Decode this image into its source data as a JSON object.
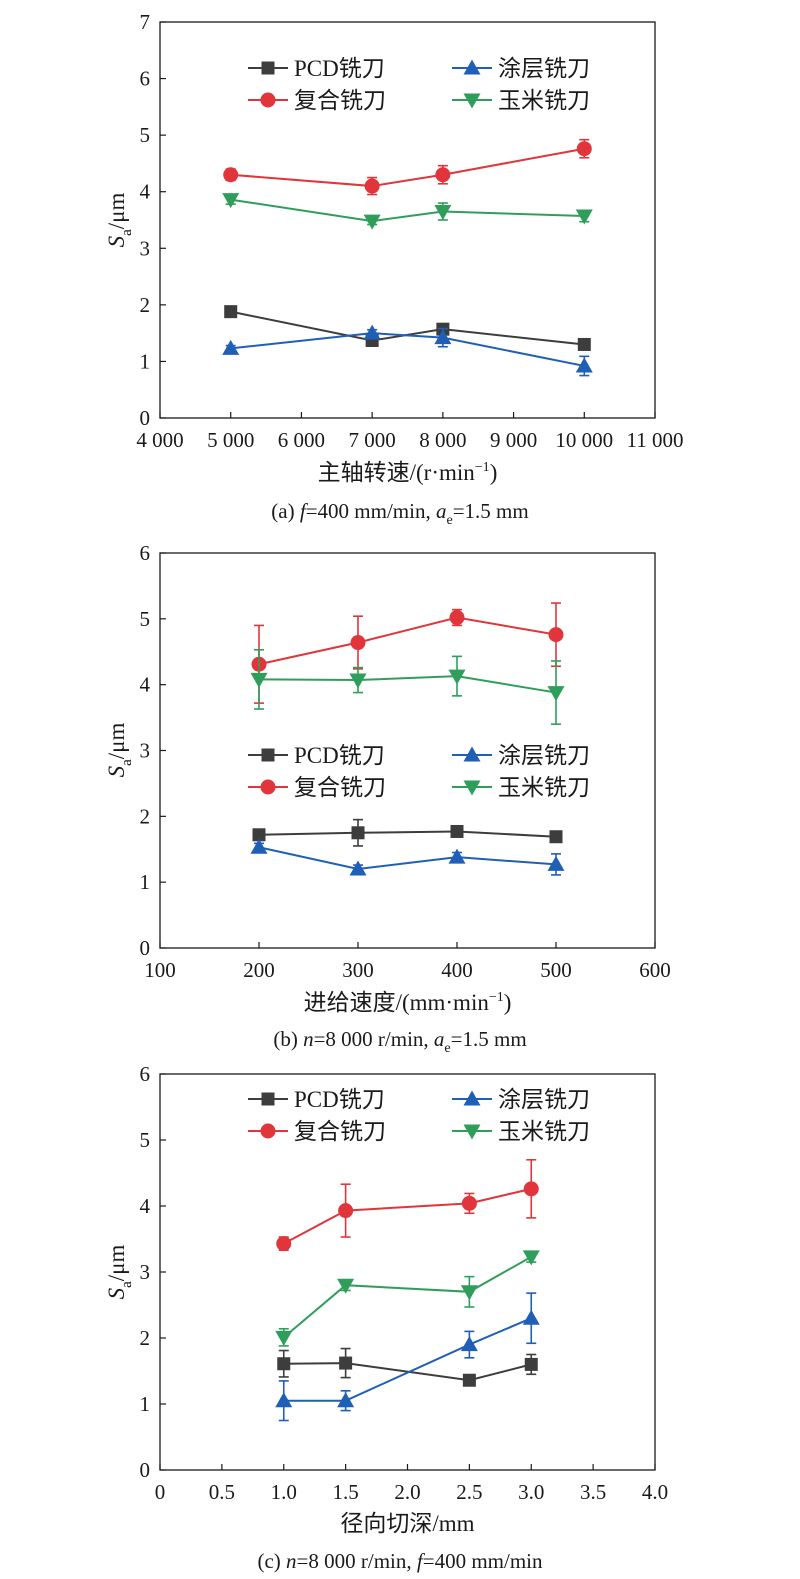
{
  "chart_data": [
    {
      "type": "line",
      "panel": "a",
      "xlabel": "主轴转速/(r·min",
      "xlabel_sup": "−1",
      "xlabel_close": ")",
      "ylabel": "S",
      "ylabel_sub": "a",
      "ylabel_unit": "/μm",
      "caption": "(a) f=400 mm/min, ae=1.5 mm",
      "caption_parts": {
        "pre": "(a) ",
        "var1": "f",
        "mid": "=400 mm/min, ",
        "var2": "a",
        "var2_sub": "e",
        "post": "=1.5 mm"
      },
      "xlim": [
        4000,
        11000
      ],
      "ylim": [
        0,
        7
      ],
      "xticks": [
        4000,
        5000,
        6000,
        7000,
        8000,
        9000,
        10000,
        11000
      ],
      "xtick_labels": [
        "4 000",
        "5 000",
        "6 000",
        "7 000",
        "8 000",
        "9 000",
        "10 000",
        "11 000"
      ],
      "yticks": [
        0,
        1,
        2,
        3,
        4,
        5,
        6,
        7
      ],
      "ytick_labels": [
        "0",
        "1",
        "2",
        "3",
        "4",
        "5",
        "6",
        "7"
      ],
      "legend_position": "top",
      "grid": false,
      "x": [
        5000,
        7000,
        8000,
        10000
      ],
      "series": [
        {
          "name": "PCD铣刀",
          "marker": "square",
          "color": "#3d3d3d",
          "values": [
            1.88,
            1.37,
            1.57,
            1.3
          ],
          "errors": [
            0.05,
            0.07,
            0.06,
            0.05
          ]
        },
        {
          "name": "涂层铣刀",
          "marker": "triangle-up",
          "color": "#1f5fb5",
          "values": [
            1.23,
            1.5,
            1.42,
            0.92
          ],
          "errors": [
            0.05,
            0.06,
            0.16,
            0.17
          ]
        },
        {
          "name": "复合铣刀",
          "marker": "circle",
          "color": "#e0353a",
          "values": [
            4.3,
            4.1,
            4.3,
            4.76
          ],
          "errors": [
            0.1,
            0.15,
            0.16,
            0.16
          ]
        },
        {
          "name": "玉米铣刀",
          "marker": "triangle-down",
          "color": "#2e9e5a",
          "values": [
            3.86,
            3.48,
            3.65,
            3.57
          ],
          "errors": [
            0.08,
            0.06,
            0.15,
            0.1
          ]
        }
      ]
    },
    {
      "type": "line",
      "panel": "b",
      "xlabel": "进给速度/(mm·min",
      "xlabel_sup": "−1",
      "xlabel_close": ")",
      "ylabel": "S",
      "ylabel_sub": "a",
      "ylabel_unit": "/μm",
      "caption": "(b) n=8 000 r/min, ae=1.5 mm",
      "caption_parts": {
        "pre": "(b) ",
        "var1": "n",
        "mid": "=8 000 r/min, ",
        "var2": "a",
        "var2_sub": "e",
        "post": "=1.5 mm"
      },
      "xlim": [
        100,
        600
      ],
      "ylim": [
        0,
        6
      ],
      "xticks": [
        100,
        200,
        300,
        400,
        500,
        600
      ],
      "xtick_labels": [
        "100",
        "200",
        "300",
        "400",
        "500",
        "600"
      ],
      "yticks": [
        0,
        1,
        2,
        3,
        4,
        5,
        6
      ],
      "ytick_labels": [
        "0",
        "1",
        "2",
        "3",
        "4",
        "5",
        "6"
      ],
      "legend_position": "middle",
      "grid": false,
      "x": [
        200,
        300,
        400,
        500
      ],
      "series": [
        {
          "name": "PCD铣刀",
          "marker": "square",
          "color": "#3d3d3d",
          "values": [
            1.72,
            1.75,
            1.77,
            1.69
          ],
          "errors": [
            0.05,
            0.2,
            0.06,
            0.05
          ]
        },
        {
          "name": "涂层铣刀",
          "marker": "triangle-up",
          "color": "#1f5fb5",
          "values": [
            1.53,
            1.2,
            1.38,
            1.27
          ],
          "errors": [
            0.06,
            0.06,
            0.07,
            0.16
          ]
        },
        {
          "name": "复合铣刀",
          "marker": "circle",
          "color": "#e0353a",
          "values": [
            4.31,
            4.64,
            5.02,
            4.76
          ],
          "errors": [
            0.59,
            0.4,
            0.12,
            0.48
          ]
        },
        {
          "name": "玉米铣刀",
          "marker": "triangle-down",
          "color": "#2e9e5a",
          "values": [
            4.08,
            4.07,
            4.13,
            3.88
          ],
          "errors": [
            0.45,
            0.19,
            0.3,
            0.48
          ]
        }
      ]
    },
    {
      "type": "line",
      "panel": "c",
      "xlabel": "径向切深/mm",
      "xlabel_sup": "",
      "xlabel_close": "",
      "ylabel": "S",
      "ylabel_sub": "a",
      "ylabel_unit": "/μm",
      "caption": "(c) n=8 000 r/min, f=400 mm/min",
      "caption_parts": {
        "pre": "(c) ",
        "var1": "n",
        "mid": "=8 000 r/min, ",
        "var2": "f",
        "var2_sub": "",
        "post": "=400 mm/min"
      },
      "xlim": [
        0,
        4
      ],
      "ylim": [
        0,
        6
      ],
      "xticks": [
        0,
        0.5,
        1,
        1.5,
        2,
        2.5,
        3,
        3.5,
        4
      ],
      "xtick_labels": [
        "0",
        "0.5",
        "1.0",
        "1.5",
        "2.0",
        "2.5",
        "3.0",
        "3.5",
        "4.0"
      ],
      "yticks": [
        0,
        1,
        2,
        3,
        4,
        5,
        6
      ],
      "ytick_labels": [
        "0",
        "1",
        "2",
        "3",
        "4",
        "5",
        "6"
      ],
      "legend_position": "top",
      "grid": false,
      "x": [
        1.0,
        1.5,
        2.5,
        3.0
      ],
      "series": [
        {
          "name": "PCD铣刀",
          "marker": "square",
          "color": "#3d3d3d",
          "values": [
            1.61,
            1.62,
            1.36,
            1.6
          ],
          "errors": [
            0.2,
            0.22,
            0.05,
            0.15
          ]
        },
        {
          "name": "涂层铣刀",
          "marker": "triangle-up",
          "color": "#1f5fb5",
          "values": [
            1.05,
            1.05,
            1.9,
            2.3
          ],
          "errors": [
            0.3,
            0.15,
            0.2,
            0.38
          ]
        },
        {
          "name": "复合铣刀",
          "marker": "circle",
          "color": "#e0353a",
          "values": [
            3.43,
            3.93,
            4.04,
            4.26
          ],
          "errors": [
            0.1,
            0.4,
            0.15,
            0.44
          ]
        },
        {
          "name": "玉米铣刀",
          "marker": "triangle-down",
          "color": "#2e9e5a",
          "values": [
            2.01,
            2.8,
            2.7,
            3.23
          ],
          "errors": [
            0.13,
            0.08,
            0.23,
            0.08
          ]
        }
      ]
    }
  ]
}
